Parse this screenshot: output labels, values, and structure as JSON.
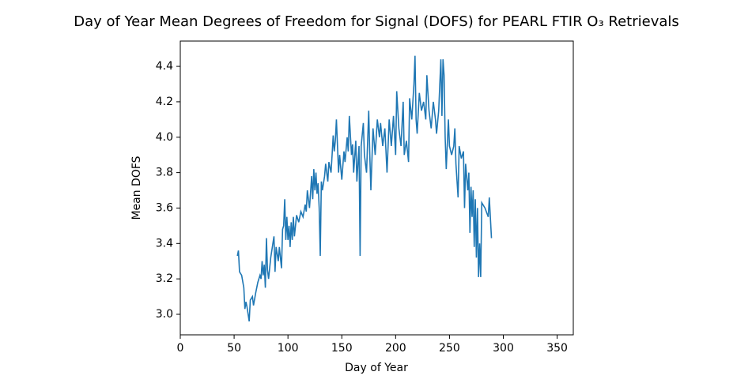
{
  "chart_data": {
    "type": "line",
    "title": "Day of Year Mean Degrees of Freedom for Signal (DOFS) for PEARL FTIR O₃ Retrievals",
    "x_label": "Day of Year",
    "y_label": "Mean DOFS",
    "color": "#1f77b4",
    "x": [
      53,
      54,
      55,
      57,
      59,
      60,
      61,
      62,
      64,
      65,
      67,
      68,
      70,
      72,
      74,
      75,
      76,
      77,
      78,
      79,
      80,
      81,
      82,
      84,
      86,
      87,
      88,
      89,
      91,
      92,
      94,
      95,
      96,
      97,
      98,
      99,
      100,
      101,
      102,
      103,
      104,
      105,
      106,
      108,
      110,
      112,
      114,
      116,
      117,
      118,
      120,
      122,
      123,
      124,
      125,
      126,
      127,
      128,
      129,
      130,
      131,
      132,
      134,
      135,
      137,
      138,
      140,
      141,
      142,
      143,
      144,
      145,
      146,
      147,
      148,
      150,
      152,
      153,
      155,
      156,
      157,
      159,
      160,
      161,
      163,
      164,
      166,
      167,
      168,
      170,
      171,
      173,
      175,
      176,
      177,
      179,
      181,
      183,
      185,
      186,
      188,
      190,
      192,
      194,
      196,
      198,
      200,
      201,
      203,
      205,
      207,
      208,
      210,
      212,
      213,
      215,
      217,
      218,
      219,
      220,
      222,
      224,
      226,
      228,
      229,
      231,
      233,
      235,
      237,
      238,
      240,
      242,
      243,
      244,
      245,
      246,
      247,
      249,
      250,
      252,
      254,
      255,
      256,
      258,
      259,
      261,
      263,
      264,
      265,
      267,
      268,
      269,
      270,
      271,
      272,
      273,
      274,
      275,
      276,
      277,
      278,
      279,
      280,
      283,
      286,
      287,
      289
    ],
    "values": [
      3.33,
      3.36,
      3.24,
      3.22,
      3.15,
      3.03,
      3.07,
      3.04,
      2.96,
      3.08,
      3.1,
      3.05,
      3.12,
      3.18,
      3.22,
      3.2,
      3.3,
      3.22,
      3.28,
      3.15,
      3.43,
      3.25,
      3.2,
      3.32,
      3.4,
      3.44,
      3.24,
      3.38,
      3.3,
      3.38,
      3.26,
      3.48,
      3.5,
      3.65,
      3.42,
      3.55,
      3.42,
      3.5,
      3.38,
      3.52,
      3.42,
      3.55,
      3.44,
      3.56,
      3.52,
      3.58,
      3.55,
      3.62,
      3.58,
      3.7,
      3.6,
      3.78,
      3.65,
      3.82,
      3.7,
      3.8,
      3.68,
      3.74,
      3.6,
      3.33,
      3.75,
      3.7,
      3.78,
      3.85,
      3.75,
      3.86,
      3.8,
      3.9,
      4.01,
      3.92,
      3.98,
      4.1,
      3.95,
      3.8,
      3.9,
      3.76,
      3.92,
      3.86,
      4.0,
      3.92,
      4.12,
      3.9,
      3.96,
      3.8,
      3.98,
      3.75,
      3.95,
      3.33,
      3.95,
      4.08,
      3.9,
      3.8,
      4.15,
      3.9,
      3.7,
      4.05,
      3.9,
      4.1,
      4.0,
      4.08,
      3.95,
      4.05,
      3.8,
      4.1,
      3.95,
      4.12,
      3.9,
      4.26,
      4.05,
      3.95,
      4.2,
      3.9,
      3.98,
      3.86,
      4.22,
      4.1,
      4.3,
      4.46,
      4.1,
      4.02,
      4.25,
      4.15,
      4.2,
      4.1,
      4.35,
      4.15,
      4.05,
      4.2,
      4.1,
      4.02,
      4.15,
      4.44,
      4.12,
      4.44,
      4.35,
      4.0,
      3.82,
      4.1,
      3.95,
      3.9,
      3.95,
      4.05,
      3.85,
      3.66,
      3.95,
      3.88,
      3.92,
      3.6,
      3.85,
      3.7,
      3.8,
      3.46,
      3.72,
      3.55,
      3.7,
      3.38,
      3.65,
      3.32,
      3.6,
      3.21,
      3.4,
      3.21,
      3.63,
      3.6,
      3.55,
      3.66,
      3.43
    ],
    "xlim": [
      0,
      365
    ],
    "xticks": [
      0,
      50,
      100,
      150,
      200,
      250,
      300,
      350
    ],
    "ylim": [
      2.884,
      4.543
    ],
    "yticks": [
      {
        "value": 3,
        "label": "3.0"
      },
      3.2,
      3.4,
      3.6,
      3.8,
      {
        "value": 4,
        "label": "4.0"
      },
      4.2,
      4.4
    ]
  }
}
